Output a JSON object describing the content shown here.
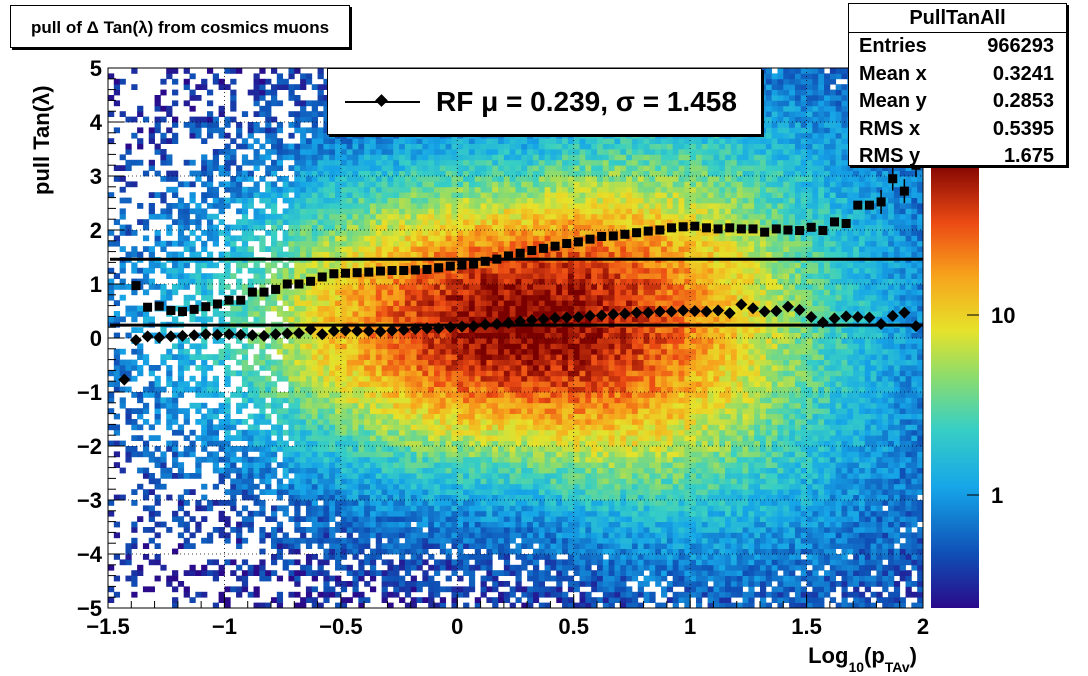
{
  "title": "pull of Δ Tan(λ) from cosmics muons",
  "stats": {
    "name": "PullTanAll",
    "rows": [
      {
        "key": "Entries",
        "value": "966293"
      },
      {
        "key": "Mean x",
        "value": "0.3241"
      },
      {
        "key": "Mean y",
        "value": "0.2853"
      },
      {
        "key": "RMS x",
        "value": "0.5395"
      },
      {
        "key": "RMS y",
        "value": "1.675"
      }
    ]
  },
  "legend": {
    "label": "RF μ =  0.239, σ =   1.458"
  },
  "colors": {
    "marker": "#000000",
    "palette": "rainbow",
    "palette_low": "#2a0a8a",
    "palette_high": "#7a0000"
  },
  "chart_data": {
    "type": "heatmap",
    "xlabel": "Log10(pTAv)",
    "xlabel_parts": {
      "base": "Log",
      "sub1": "10",
      "mid": "(p",
      "sub2": "TAv",
      "end": ")"
    },
    "ylabel": "pull Tan(λ)",
    "xlim": [
      -1.5,
      2
    ],
    "ylim": [
      -5,
      5
    ],
    "zscale": "log",
    "x_ticks": [
      "−1.5",
      "−1",
      "−0.5",
      "0",
      "0.5",
      "1",
      "1.5",
      "2"
    ],
    "y_ticks": [
      "−5",
      "−4",
      "−3",
      "−2",
      "−1",
      "0",
      "1",
      "2",
      "3",
      "4",
      "5"
    ],
    "z_ticks": [
      "1",
      "10"
    ],
    "grid": true,
    "hlines": [
      0.239,
      1.458
    ],
    "mean_series": {
      "name": "mean",
      "marker": "diamond",
      "x": [
        -1.43,
        -1.38,
        -1.33,
        -1.28,
        -1.23,
        -1.18,
        -1.13,
        -1.08,
        -1.03,
        -0.98,
        -0.93,
        -0.88,
        -0.83,
        -0.78,
        -0.73,
        -0.68,
        -0.63,
        -0.58,
        -0.53,
        -0.48,
        -0.43,
        -0.38,
        -0.33,
        -0.28,
        -0.23,
        -0.18,
        -0.13,
        -0.08,
        -0.03,
        0.02,
        0.07,
        0.12,
        0.17,
        0.22,
        0.27,
        0.32,
        0.37,
        0.42,
        0.47,
        0.52,
        0.57,
        0.62,
        0.67,
        0.72,
        0.77,
        0.82,
        0.87,
        0.92,
        0.97,
        1.02,
        1.07,
        1.12,
        1.17,
        1.22,
        1.27,
        1.32,
        1.37,
        1.42,
        1.47,
        1.52,
        1.57,
        1.62,
        1.67,
        1.72,
        1.77,
        1.82,
        1.87,
        1.92,
        1.97
      ],
      "y": [
        -0.77,
        -0.04,
        0.03,
        0.01,
        0.03,
        0.04,
        0.05,
        0.07,
        0.06,
        0.07,
        0.06,
        0.05,
        0.04,
        0.07,
        0.08,
        0.09,
        0.16,
        0.07,
        0.13,
        0.14,
        0.13,
        0.13,
        0.12,
        0.14,
        0.15,
        0.17,
        0.18,
        0.18,
        0.2,
        0.21,
        0.22,
        0.25,
        0.26,
        0.28,
        0.31,
        0.33,
        0.35,
        0.37,
        0.38,
        0.39,
        0.41,
        0.42,
        0.44,
        0.45,
        0.47,
        0.47,
        0.49,
        0.49,
        0.51,
        0.5,
        0.49,
        0.51,
        0.46,
        0.62,
        0.55,
        0.49,
        0.5,
        0.58,
        0.52,
        0.39,
        0.29,
        0.36,
        0.4,
        0.39,
        0.38,
        0.26,
        0.41,
        0.47,
        0.22
      ]
    },
    "rms_series": {
      "name": "rms",
      "marker": "square",
      "x": [
        -1.38,
        -1.33,
        -1.28,
        -1.23,
        -1.18,
        -1.13,
        -1.08,
        -1.03,
        -0.98,
        -0.93,
        -0.88,
        -0.83,
        -0.78,
        -0.73,
        -0.68,
        -0.63,
        -0.58,
        -0.53,
        -0.48,
        -0.43,
        -0.38,
        -0.33,
        -0.28,
        -0.23,
        -0.18,
        -0.13,
        -0.08,
        -0.03,
        0.02,
        0.07,
        0.12,
        0.17,
        0.22,
        0.27,
        0.32,
        0.37,
        0.42,
        0.47,
        0.52,
        0.57,
        0.62,
        0.67,
        0.72,
        0.77,
        0.82,
        0.87,
        0.92,
        0.97,
        1.02,
        1.07,
        1.12,
        1.17,
        1.22,
        1.27,
        1.32,
        1.37,
        1.42,
        1.47,
        1.52,
        1.57,
        1.62,
        1.67,
        1.72,
        1.77,
        1.82,
        1.87,
        1.92,
        1.97
      ],
      "y": [
        0.97,
        0.57,
        0.59,
        0.51,
        0.49,
        0.53,
        0.58,
        0.63,
        0.7,
        0.7,
        0.85,
        0.85,
        0.9,
        1.0,
        1.0,
        1.05,
        1.13,
        1.19,
        1.2,
        1.21,
        1.22,
        1.24,
        1.25,
        1.25,
        1.26,
        1.27,
        1.3,
        1.33,
        1.35,
        1.37,
        1.42,
        1.46,
        1.52,
        1.57,
        1.62,
        1.66,
        1.7,
        1.75,
        1.78,
        1.83,
        1.88,
        1.89,
        1.92,
        1.95,
        1.98,
        2.0,
        2.04,
        2.06,
        2.07,
        2.04,
        2.02,
        2.04,
        2.02,
        2.02,
        1.96,
        2.02,
        2.0,
        1.99,
        2.05,
        1.99,
        2.15,
        2.12,
        2.46,
        2.46,
        2.52,
        2.95,
        2.72,
        3.2
      ]
    }
  }
}
